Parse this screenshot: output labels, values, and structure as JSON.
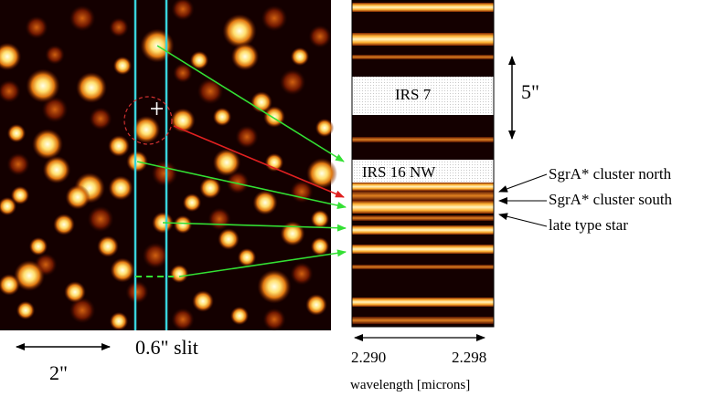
{
  "image_panel": {
    "slit_label": "0.6\" slit",
    "scale_label": "2\""
  },
  "spectrum_panel": {
    "star_labels": [
      "IRS 7",
      "IRS 16 NW"
    ],
    "scale_label": "5\"",
    "wavelength_ticks": [
      "2.290",
      "2.298"
    ],
    "axis_label": "wavelength [microns]"
  },
  "annotations": [
    "SgrA* cluster north",
    "SgrA* cluster south",
    "late type star"
  ],
  "colors": {
    "slit": "#39d3dc",
    "arrow_green": "#33e033",
    "arrow_red": "#e02020",
    "circle": "#d03030",
    "background_dark": "#140000"
  }
}
